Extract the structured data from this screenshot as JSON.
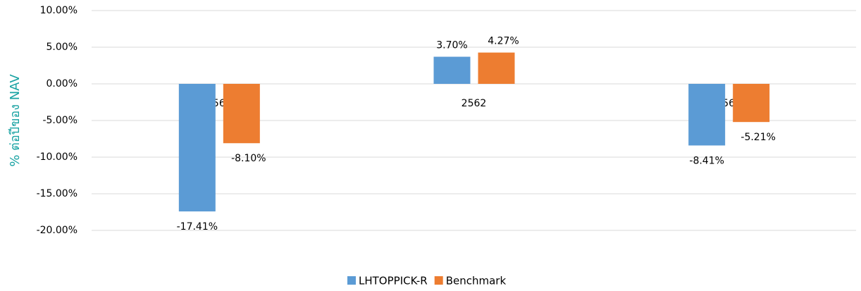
{
  "chart_data": {
    "type": "bar",
    "y_axis_label": "% ต่อปีของ NAV",
    "categories": [
      "2561",
      "2562",
      "2563"
    ],
    "series": [
      {
        "name": "LHTOPPICK-R",
        "color": "#5b9bd5",
        "values": [
          -17.41,
          3.7,
          -8.41
        ],
        "value_labels": [
          "-17.41%",
          "3.70%",
          "-8.41%"
        ]
      },
      {
        "name": "Benchmark",
        "color": "#ed7d31",
        "values": [
          -8.1,
          4.27,
          -5.21
        ],
        "value_labels": [
          "-8.10%",
          "4.27%",
          "-5.21%"
        ]
      }
    ],
    "ylim": [
      -20,
      10
    ],
    "yticks": [
      {
        "value": 10,
        "label": "10.00%"
      },
      {
        "value": 5,
        "label": "5.00%"
      },
      {
        "value": 0,
        "label": "0.00%"
      },
      {
        "value": -5,
        "label": "-5.00%"
      },
      {
        "value": -10,
        "label": "-10.00%"
      },
      {
        "value": -15,
        "label": "-15.00%"
      },
      {
        "value": -20,
        "label": "-20.00%"
      }
    ],
    "grid": true,
    "legend": "bottom"
  }
}
